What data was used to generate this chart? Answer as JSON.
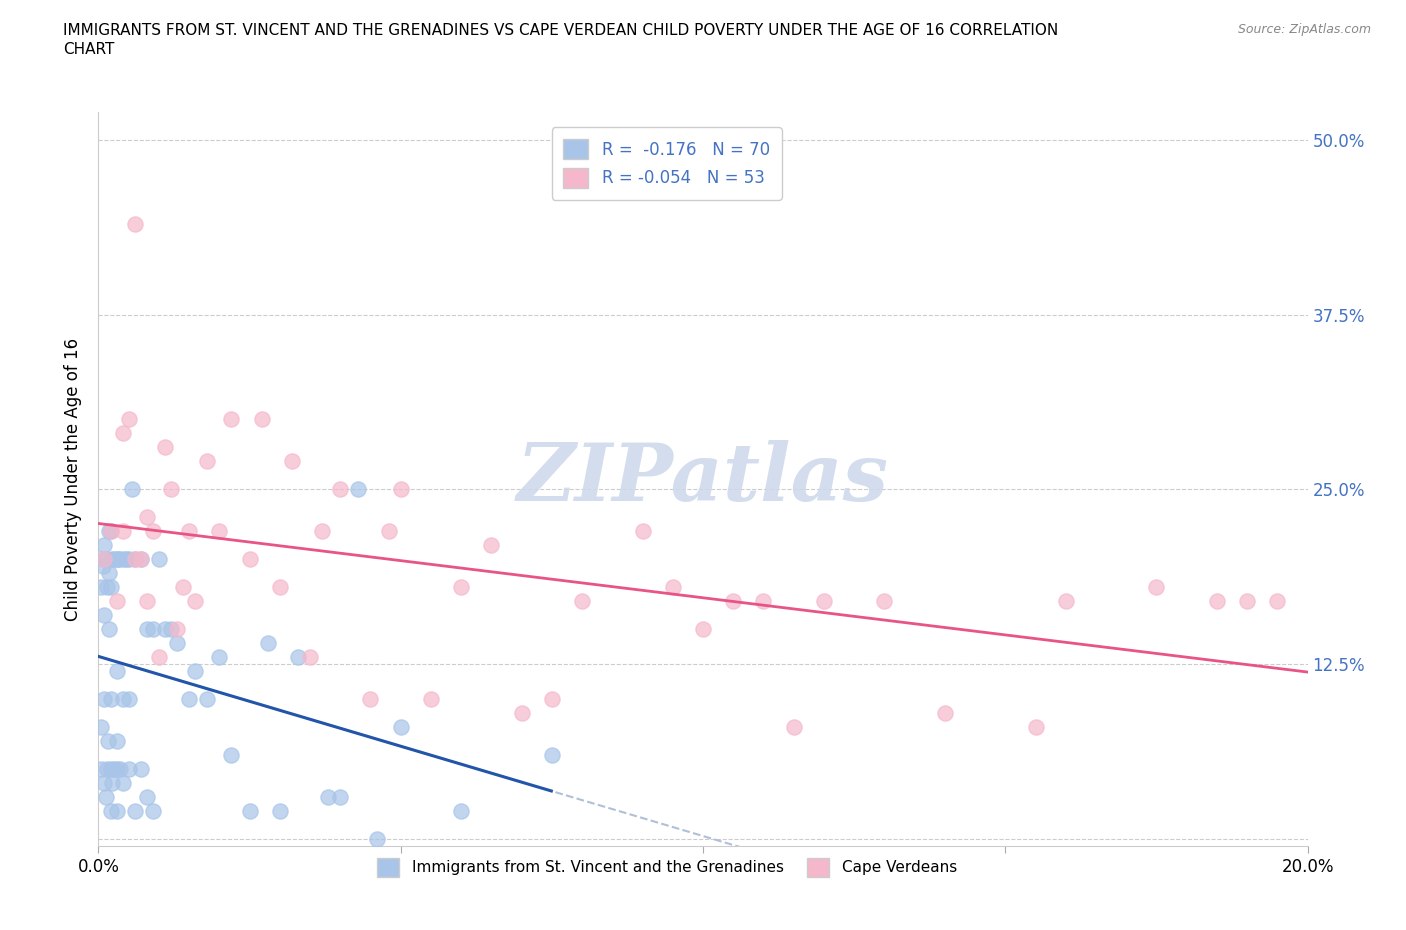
{
  "title_line1": "IMMIGRANTS FROM ST. VINCENT AND THE GRENADINES VS CAPE VERDEAN CHILD POVERTY UNDER THE AGE OF 16 CORRELATION",
  "title_line2": "CHART",
  "source": "Source: ZipAtlas.com",
  "ylabel": "Child Poverty Under the Age of 16",
  "xlim": [
    0.0,
    0.2
  ],
  "ylim": [
    -0.005,
    0.52
  ],
  "yticks": [
    0.0,
    0.125,
    0.25,
    0.375,
    0.5
  ],
  "ytick_labels": [
    "",
    "12.5%",
    "25.0%",
    "37.5%",
    "50.0%"
  ],
  "xticks": [
    0.0,
    0.05,
    0.1,
    0.15,
    0.2
  ],
  "xtick_labels": [
    "0.0%",
    "",
    "",
    "",
    "20.0%"
  ],
  "blue_R": -0.176,
  "blue_N": 70,
  "pink_R": -0.054,
  "pink_N": 53,
  "blue_color": "#a8c4e8",
  "pink_color": "#f5b8cb",
  "trend_blue_color": "#2255aa",
  "trend_pink_color": "#e85585",
  "trend_grey_color": "#b0c0d8",
  "watermark_color": "#cdd8ea",
  "ylabel_color": "#000000",
  "ytick_color": "#4472c4",
  "xtick_color": "#000000",
  "title_color": "#000000",
  "source_color": "#888888",
  "legend_blue_label": "Immigrants from St. Vincent and the Grenadines",
  "legend_pink_label": "Cape Verdeans",
  "blue_x": [
    0.0005,
    0.0005,
    0.0005,
    0.0007,
    0.0008,
    0.001,
    0.001,
    0.001,
    0.001,
    0.0012,
    0.0013,
    0.0015,
    0.0015,
    0.0016,
    0.0017,
    0.0018,
    0.0018,
    0.002,
    0.002,
    0.002,
    0.002,
    0.002,
    0.0022,
    0.0023,
    0.0025,
    0.0025,
    0.003,
    0.003,
    0.003,
    0.003,
    0.003,
    0.0032,
    0.0035,
    0.0035,
    0.004,
    0.004,
    0.0042,
    0.0045,
    0.005,
    0.005,
    0.005,
    0.0055,
    0.006,
    0.006,
    0.007,
    0.007,
    0.008,
    0.008,
    0.009,
    0.009,
    0.01,
    0.011,
    0.012,
    0.013,
    0.015,
    0.016,
    0.018,
    0.02,
    0.022,
    0.025,
    0.028,
    0.03,
    0.033,
    0.038,
    0.04,
    0.043,
    0.046,
    0.05,
    0.06,
    0.075
  ],
  "blue_y": [
    0.05,
    0.08,
    0.18,
    0.2,
    0.195,
    0.04,
    0.1,
    0.16,
    0.21,
    0.03,
    0.2,
    0.05,
    0.18,
    0.07,
    0.19,
    0.15,
    0.22,
    0.02,
    0.05,
    0.1,
    0.18,
    0.22,
    0.04,
    0.2,
    0.05,
    0.2,
    0.02,
    0.05,
    0.07,
    0.12,
    0.2,
    0.2,
    0.05,
    0.2,
    0.04,
    0.1,
    0.2,
    0.2,
    0.05,
    0.1,
    0.2,
    0.25,
    0.02,
    0.2,
    0.05,
    0.2,
    0.03,
    0.15,
    0.02,
    0.15,
    0.2,
    0.15,
    0.15,
    0.14,
    0.1,
    0.12,
    0.1,
    0.13,
    0.06,
    0.02,
    0.14,
    0.02,
    0.13,
    0.03,
    0.03,
    0.25,
    0.0,
    0.08,
    0.02,
    0.06
  ],
  "pink_x": [
    0.001,
    0.002,
    0.003,
    0.004,
    0.004,
    0.005,
    0.006,
    0.006,
    0.007,
    0.008,
    0.008,
    0.009,
    0.01,
    0.011,
    0.012,
    0.013,
    0.014,
    0.015,
    0.016,
    0.018,
    0.02,
    0.022,
    0.025,
    0.027,
    0.03,
    0.032,
    0.035,
    0.037,
    0.04,
    0.045,
    0.048,
    0.05,
    0.055,
    0.06,
    0.065,
    0.07,
    0.075,
    0.08,
    0.09,
    0.095,
    0.1,
    0.105,
    0.11,
    0.115,
    0.12,
    0.13,
    0.14,
    0.155,
    0.16,
    0.175,
    0.185,
    0.19,
    0.195
  ],
  "pink_y": [
    0.2,
    0.22,
    0.17,
    0.29,
    0.22,
    0.3,
    0.44,
    0.2,
    0.2,
    0.23,
    0.17,
    0.22,
    0.13,
    0.28,
    0.25,
    0.15,
    0.18,
    0.22,
    0.17,
    0.27,
    0.22,
    0.3,
    0.2,
    0.3,
    0.18,
    0.27,
    0.13,
    0.22,
    0.25,
    0.1,
    0.22,
    0.25,
    0.1,
    0.18,
    0.21,
    0.09,
    0.1,
    0.17,
    0.22,
    0.18,
    0.15,
    0.17,
    0.17,
    0.08,
    0.17,
    0.17,
    0.09,
    0.08,
    0.17,
    0.18,
    0.17,
    0.17,
    0.17
  ]
}
